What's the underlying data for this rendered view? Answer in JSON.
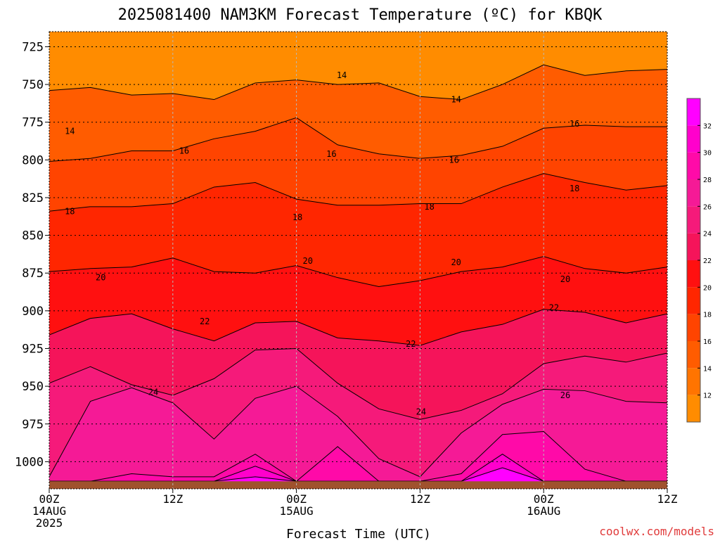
{
  "chart_data": {
    "type": "heatmap",
    "title": "2025081400 NAM3KM Forecast Temperature (ºC) for KBQK",
    "xlabel": "Forecast Time (UTC)",
    "ylabel": "",
    "credit": "coolwx.com/models",
    "y_axis": {
      "units": "hPa",
      "inverted": true,
      "ylim": [
        1018,
        715
      ],
      "ticks": [
        725,
        750,
        775,
        800,
        825,
        850,
        875,
        900,
        925,
        950,
        975,
        1000
      ]
    },
    "x_axis": {
      "units": "forecast hour",
      "xlim": [
        0,
        60
      ],
      "ticks": [
        {
          "hour": 0,
          "line1": "00Z",
          "line2": "14AUG",
          "line3": "2025"
        },
        {
          "hour": 12,
          "line1": "12Z",
          "line2": "",
          "line3": ""
        },
        {
          "hour": 24,
          "line1": "00Z",
          "line2": "15AUG",
          "line3": ""
        },
        {
          "hour": 36,
          "line1": "12Z",
          "line2": "",
          "line3": ""
        },
        {
          "hour": 48,
          "line1": "00Z",
          "line2": "16AUG",
          "line3": ""
        },
        {
          "hour": 60,
          "line1": "12Z",
          "line2": "",
          "line3": ""
        }
      ]
    },
    "grid": true,
    "surface_pressure_hPa": 1013,
    "colorbar": {
      "ticks": [
        12,
        14,
        16,
        18,
        20,
        22,
        24,
        26,
        28,
        30,
        32
      ],
      "levels": [
        10,
        12,
        14,
        16,
        18,
        20,
        22,
        24,
        26,
        28,
        30,
        32,
        34
      ],
      "colors": [
        "#ff8c00",
        "#ff7400",
        "#ff5c00",
        "#ff4400",
        "#ff2600",
        "#ff1010",
        "#f5145a",
        "#f51a7a",
        "#f51a96",
        "#ff0aa8",
        "#ff00cc",
        "#ff00ff"
      ]
    },
    "contour_isotherms": [
      {
        "temp": 14,
        "pressure": [
          754,
          752,
          757,
          756,
          760,
          749,
          747,
          750,
          749,
          758,
          760,
          750,
          737,
          744,
          741,
          740
        ]
      },
      {
        "temp": 16,
        "pressure": [
          801,
          799,
          794,
          794,
          786,
          781,
          772,
          790,
          796,
          799,
          797,
          791,
          779,
          777,
          778,
          778
        ]
      },
      {
        "temp": 18,
        "pressure": [
          834,
          831,
          831,
          829,
          818,
          815,
          826,
          830,
          830,
          829,
          829,
          818,
          809,
          815,
          820,
          817
        ]
      },
      {
        "temp": 20,
        "pressure": [
          874,
          872,
          871,
          865,
          874,
          875,
          870,
          878,
          884,
          880,
          874,
          871,
          864,
          872,
          875,
          871
        ]
      },
      {
        "temp": 22,
        "pressure": [
          916,
          905,
          902,
          912,
          920,
          908,
          907,
          918,
          920,
          923,
          914,
          909,
          899,
          901,
          908,
          902
        ]
      },
      {
        "temp": 24,
        "pressure": [
          948,
          937,
          949,
          956,
          945,
          926,
          925,
          948,
          965,
          972,
          966,
          955,
          935,
          930,
          934,
          928
        ]
      },
      {
        "temp": 26,
        "pressure": [
          1010,
          960,
          951,
          961,
          985,
          958,
          950,
          970,
          998,
          1010,
          981,
          962,
          952,
          953,
          960,
          961
        ]
      },
      {
        "temp": 28,
        "pressure": [
          1013,
          1013,
          1008,
          1010,
          1010,
          995,
          1013,
          990,
          1013,
          1013,
          1008,
          982,
          980,
          1005,
          1013,
          1013
        ]
      },
      {
        "temp": 30,
        "pressure": [
          1013,
          1013,
          1013,
          1013,
          1013,
          1003,
          1013,
          1013,
          1013,
          1013,
          1013,
          995,
          1013,
          1013,
          1013,
          1013
        ]
      },
      {
        "temp": 32,
        "pressure": [
          1013,
          1013,
          1013,
          1013,
          1013,
          1010,
          1013,
          1013,
          1013,
          1013,
          1013,
          1004,
          1013,
          1013,
          1013,
          1013
        ]
      }
    ],
    "isotherm_hours": [
      0,
      4,
      8,
      12,
      16,
      20,
      24,
      28,
      32,
      36,
      40,
      44,
      48,
      52,
      56,
      60
    ],
    "contour_labels": [
      {
        "text": "14",
        "hour": 2.0,
        "pressure": 781
      },
      {
        "text": "14",
        "hour": 28.4,
        "pressure": 744
      },
      {
        "text": "14",
        "hour": 39.5,
        "pressure": 760
      },
      {
        "text": "16",
        "hour": 13.1,
        "pressure": 794
      },
      {
        "text": "16",
        "hour": 27.4,
        "pressure": 796
      },
      {
        "text": "16",
        "hour": 39.3,
        "pressure": 800
      },
      {
        "text": "16",
        "hour": 51.0,
        "pressure": 776
      },
      {
        "text": "18",
        "hour": 2.0,
        "pressure": 834
      },
      {
        "text": "18",
        "hour": 24.1,
        "pressure": 838
      },
      {
        "text": "18",
        "hour": 36.9,
        "pressure": 831
      },
      {
        "text": "18",
        "hour": 51.0,
        "pressure": 819
      },
      {
        "text": "20",
        "hour": 5.0,
        "pressure": 878
      },
      {
        "text": "20",
        "hour": 25.1,
        "pressure": 867
      },
      {
        "text": "20",
        "hour": 39.5,
        "pressure": 868
      },
      {
        "text": "20",
        "hour": 50.1,
        "pressure": 879
      },
      {
        "text": "22",
        "hour": 15.1,
        "pressure": 907
      },
      {
        "text": "22",
        "hour": 35.1,
        "pressure": 922
      },
      {
        "text": "22",
        "hour": 49.0,
        "pressure": 898
      },
      {
        "text": "24",
        "hour": 10.1,
        "pressure": 954
      },
      {
        "text": "24",
        "hour": 36.1,
        "pressure": 967
      },
      {
        "text": "26",
        "hour": 50.1,
        "pressure": 956
      }
    ]
  }
}
